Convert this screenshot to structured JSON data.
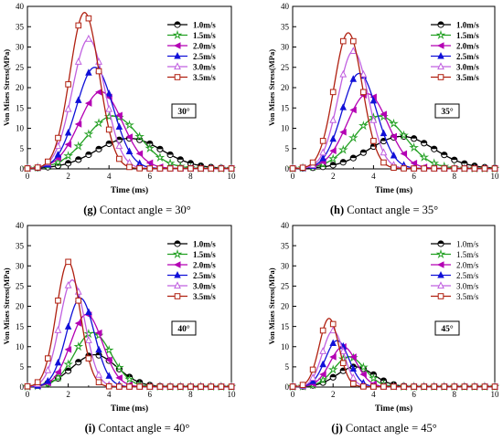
{
  "colors": {
    "1.0m/s": "#000000",
    "1.5m/s": "#22a022",
    "2.0m/s": "#b400b4",
    "2.5m/s": "#1010d8",
    "3.0m/s": "#c060e0",
    "3.5m/s": "#b02010"
  },
  "chart_data": [
    {
      "type": "line",
      "panel": "g",
      "caption_prefix": "(g)",
      "caption_text": "Contact angle = 30°",
      "xlabel": "Time (ms)",
      "ylabel": "Von Mises Stress(MPa)",
      "xlim": [
        0,
        10
      ],
      "ylim": [
        0,
        40
      ],
      "xticks": [
        0,
        2,
        4,
        6,
        8,
        10
      ],
      "yticks": [
        0,
        5,
        10,
        15,
        20,
        25,
        30,
        35,
        40
      ],
      "annotation": "30°",
      "legend_position": "top-right",
      "legend_font": "bold",
      "series": [
        {
          "name": "1.0m/s",
          "marker": "circle",
          "peak_time": 5.0,
          "peak": 7.5,
          "width": 1.6
        },
        {
          "name": "1.5m/s",
          "marker": "star",
          "peak_time": 4.2,
          "peak": 13,
          "width": 1.3
        },
        {
          "name": "2.0m/s",
          "marker": "triangle-left",
          "peak_time": 3.6,
          "peak": 19,
          "width": 1.05
        },
        {
          "name": "2.5m/s",
          "marker": "triangle-up",
          "peak_time": 3.3,
          "peak": 25,
          "width": 0.9
        },
        {
          "name": "3.0m/s",
          "marker": "triangle-up-open",
          "peak_time": 3.0,
          "peak": 32,
          "width": 0.8
        },
        {
          "name": "3.5m/s",
          "marker": "square",
          "peak_time": 2.8,
          "peak": 38.5,
          "width": 0.72
        }
      ]
    },
    {
      "type": "line",
      "panel": "h",
      "caption_prefix": "(h)",
      "caption_text": "Contact angle = 35°",
      "xlabel": "Time (ms)",
      "ylabel": "Von Mises Stress(MPa)",
      "xlim": [
        0,
        10
      ],
      "ylim": [
        0,
        40
      ],
      "xticks": [
        0,
        2,
        4,
        6,
        8,
        10
      ],
      "yticks": [
        0,
        5,
        10,
        15,
        20,
        25,
        30,
        35,
        40
      ],
      "annotation": "35°",
      "legend_position": "top-right",
      "legend_font": "bold",
      "series": [
        {
          "name": "1.0m/s",
          "marker": "circle",
          "peak_time": 5.4,
          "peak": 8,
          "width": 1.6
        },
        {
          "name": "1.5m/s",
          "marker": "star",
          "peak_time": 4.3,
          "peak": 13,
          "width": 1.25
        },
        {
          "name": "2.0m/s",
          "marker": "triangle-left",
          "peak_time": 3.7,
          "peak": 18.5,
          "width": 1.0
        },
        {
          "name": "2.5m/s",
          "marker": "triangle-up",
          "peak_time": 3.3,
          "peak": 23.5,
          "width": 0.85
        },
        {
          "name": "3.0m/s",
          "marker": "triangle-up-open",
          "peak_time": 3.0,
          "peak": 29,
          "width": 0.75
        },
        {
          "name": "3.5m/s",
          "marker": "square",
          "peak_time": 2.75,
          "peak": 33.5,
          "width": 0.7
        }
      ]
    },
    {
      "type": "line",
      "panel": "i",
      "caption_prefix": "(i)",
      "caption_text": "Contact angle = 40°",
      "xlabel": "Time (ms)",
      "ylabel": "Von Mises Stress(MPa)",
      "xlim": [
        0,
        10
      ],
      "ylim": [
        0,
        40
      ],
      "xticks": [
        0,
        2,
        4,
        6,
        8,
        10
      ],
      "yticks": [
        0,
        5,
        10,
        15,
        20,
        25,
        30,
        35,
        40
      ],
      "annotation": "40°",
      "legend_position": "top-right",
      "legend_font": "bold",
      "series": [
        {
          "name": "1.0m/s",
          "marker": "circle",
          "peak_time": 3.3,
          "peak": 8,
          "width": 1.1
        },
        {
          "name": "1.5m/s",
          "marker": "star",
          "peak_time": 3.2,
          "peak": 13.5,
          "width": 0.9
        },
        {
          "name": "2.0m/s",
          "marker": "triangle-left",
          "peak_time": 2.9,
          "peak": 18,
          "width": 0.78
        },
        {
          "name": "2.5m/s",
          "marker": "triangle-up",
          "peak_time": 2.6,
          "peak": 22,
          "width": 0.68
        },
        {
          "name": "3.0m/s",
          "marker": "triangle-up-open",
          "peak_time": 2.2,
          "peak": 26.5,
          "width": 0.62
        },
        {
          "name": "3.5m/s",
          "marker": "square",
          "peak_time": 2.0,
          "peak": 31,
          "width": 0.58
        }
      ]
    },
    {
      "type": "line",
      "panel": "j",
      "caption_prefix": "(j)",
      "caption_text": "Contact angle = 45°",
      "xlabel": "Time (ms)",
      "ylabel": "Von Mises Stress(MPa)",
      "xlim": [
        0,
        10
      ],
      "ylim": [
        0,
        40
      ],
      "xticks": [
        0,
        2,
        4,
        6,
        8,
        10
      ],
      "yticks": [
        0,
        5,
        10,
        15,
        20,
        25,
        30,
        35,
        40
      ],
      "annotation": "45°",
      "legend_position": "top-right",
      "legend_font": "normal",
      "series": [
        {
          "name": "1.0m/s",
          "marker": "circle",
          "peak_time": 3.1,
          "peak": 5,
          "width": 0.9
        },
        {
          "name": "1.5m/s",
          "marker": "star",
          "peak_time": 2.8,
          "peak": 7.5,
          "width": 0.75
        },
        {
          "name": "2.0m/s",
          "marker": "triangle-left",
          "peak_time": 2.5,
          "peak": 10,
          "width": 0.65
        },
        {
          "name": "2.5m/s",
          "marker": "triangle-up",
          "peak_time": 2.2,
          "peak": 11.5,
          "width": 0.58
        },
        {
          "name": "3.0m/s",
          "marker": "triangle-up-open",
          "peak_time": 2.0,
          "peak": 14,
          "width": 0.52
        },
        {
          "name": "3.5m/s",
          "marker": "square",
          "peak_time": 1.8,
          "peak": 17,
          "width": 0.48
        }
      ]
    }
  ]
}
